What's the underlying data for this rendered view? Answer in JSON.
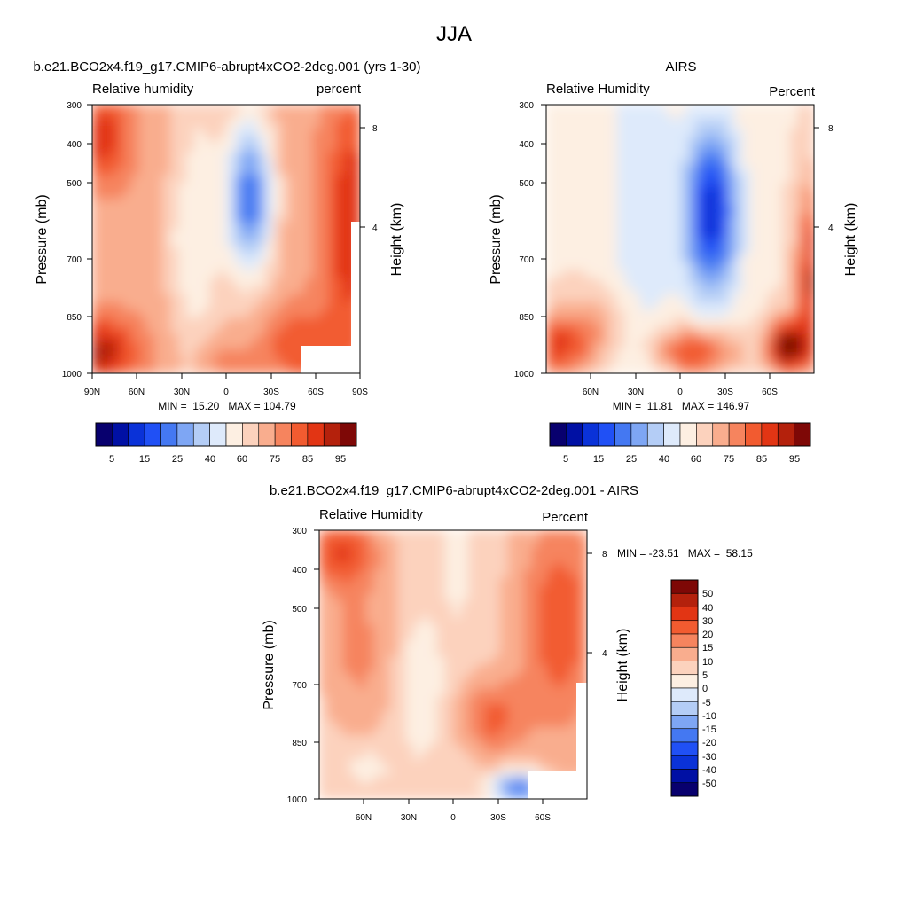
{
  "figure": {
    "title": "JJA"
  },
  "colors": {
    "abs_palette": [
      "#08006e",
      "#0010a4",
      "#0a32d8",
      "#2050f5",
      "#4478f2",
      "#7ea6f4",
      "#b4cdf6",
      "#deeafb",
      "#fdefe2",
      "#fcd2bd",
      "#f9ad8e",
      "#f6845e",
      "#f25b30",
      "#e23514",
      "#b4210c",
      "#7e0806"
    ],
    "diff_palette": [
      "#08006e",
      "#0010a4",
      "#0a32d8",
      "#2050f5",
      "#4478f2",
      "#7ea6f4",
      "#b4cdf6",
      "#deeafb",
      "#fdefe2",
      "#fcd2bd",
      "#f9ad8e",
      "#f6845e",
      "#f25b30",
      "#e23514",
      "#b4210c",
      "#7e0806"
    ]
  },
  "chart_data": [
    {
      "id": "model",
      "type": "heatmap",
      "title": "b.e21.BCO2x4.f19_g17.CMIP6-abrupt4xCO2-2deg.001 (yrs 1-30)",
      "left_label": "Relative humidity",
      "right_label": "percent",
      "ylabel": "Pressure (mb)",
      "y2label": "Height (km)",
      "xticks": [
        "90N",
        "60N",
        "30N",
        "0",
        "30S",
        "60S",
        "90S"
      ],
      "yticks": [
        "300",
        "400",
        "500",
        "700",
        "850",
        "1000"
      ],
      "y2ticks": [
        "8",
        "4"
      ],
      "stats": "MIN =  15.20   MAX = 104.79",
      "colorbar_labels": [
        "5",
        "15",
        "25",
        "40",
        "60",
        "75",
        "85",
        "95"
      ],
      "xlim": [
        90,
        -90
      ],
      "ylim": [
        1000,
        300
      ],
      "grid": false
    },
    {
      "id": "obs",
      "type": "heatmap",
      "title": "AIRS",
      "left_label": "Relative Humidity",
      "right_label": "Percent",
      "ylabel": "Pressure (mb)",
      "y2label": "Height (km)",
      "xticks": [
        "60N",
        "30N",
        "0",
        "30S",
        "60S"
      ],
      "yticks": [
        "300",
        "400",
        "500",
        "700",
        "850",
        "1000"
      ],
      "y2ticks": [
        "8",
        "4"
      ],
      "stats": "MIN =  11.81   MAX = 146.97",
      "colorbar_labels": [
        "5",
        "15",
        "25",
        "40",
        "60",
        "75",
        "85",
        "95"
      ],
      "xlim": [
        90,
        -90
      ],
      "ylim": [
        1000,
        300
      ],
      "grid": false
    },
    {
      "id": "diff",
      "type": "heatmap",
      "title": "b.e21.BCO2x4.f19_g17.CMIP6-abrupt4xCO2-2deg.001 - AIRS",
      "left_label": "Relative Humidity",
      "right_label": "Percent",
      "ylabel": "Pressure (mb)",
      "y2label": "Height (km)",
      "xticks": [
        "60N",
        "30N",
        "0",
        "30S",
        "60S"
      ],
      "yticks": [
        "300",
        "400",
        "500",
        "700",
        "850",
        "1000"
      ],
      "y2ticks": [
        "8",
        "4"
      ],
      "stats": "MIN = -23.51   MAX =  58.15",
      "colorbar_labels": [
        "50",
        "40",
        "30",
        "20",
        "15",
        "10",
        "5",
        "0",
        "-5",
        "-10",
        "-15",
        "-20",
        "-30",
        "-40",
        "-50"
      ],
      "xlim": [
        90,
        -90
      ],
      "ylim": [
        1000,
        300
      ],
      "grid": false
    }
  ]
}
